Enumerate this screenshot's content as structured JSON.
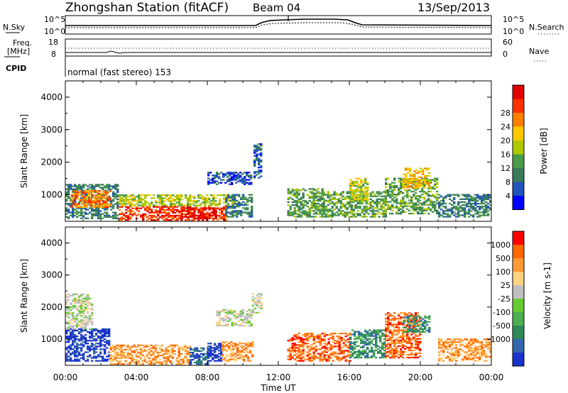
{
  "header": {
    "title": "Zhongshan Station (fitACF)",
    "beam": "Beam 04",
    "date": "13/Sep/2013"
  },
  "noise_panel": {
    "left_label": "N.Sky",
    "right_label": "N.Search",
    "ticks": [
      "10^5",
      "10^0"
    ]
  },
  "freq_panel": {
    "left_label": "Freq.",
    "left_unit": "[MHz]",
    "left_ticks": [
      "18",
      "8"
    ],
    "right_label": "Nave",
    "right_ticks": [
      "60",
      "0"
    ],
    "cpid_label": "CPID",
    "mode_text": "normal (fast stereo) 153"
  },
  "x_axis": {
    "label": "Time UT",
    "ticks": [
      "00:00",
      "04:00",
      "08:00",
      "12:00",
      "16:00",
      "20:00",
      "00:00"
    ]
  },
  "chart_data": [
    {
      "type": "heatmap",
      "panel": "power",
      "ylabel": "Slant Range [km]",
      "yticks": [
        "1000",
        "2000",
        "3000",
        "4000"
      ],
      "ylim": [
        180,
        4500
      ],
      "xlim": [
        0,
        24
      ],
      "colorbar_label": "Power [dB]",
      "colorbar_ticks": [
        "4",
        "8",
        "12",
        "16",
        "20",
        "24",
        "28"
      ],
      "colorbar_colors": [
        "#0000ff",
        "#2255bb",
        "#3a7a5a",
        "#4a9a4a",
        "#b0c800",
        "#ffc800",
        "#ff8000",
        "#ff3000",
        "#e00000"
      ],
      "regions": [
        {
          "t0": 0.0,
          "t1": 3.0,
          "r0": 250,
          "r1": 1300,
          "level": 2
        },
        {
          "t0": 0.3,
          "t1": 2.5,
          "r0": 600,
          "r1": 1100,
          "level": 6
        },
        {
          "t0": 3.0,
          "t1": 9.0,
          "r0": 200,
          "r1": 650,
          "level": 7
        },
        {
          "t0": 6.5,
          "t1": 8.5,
          "r0": 250,
          "r1": 600,
          "level": 8
        },
        {
          "t0": 3.0,
          "t1": 9.5,
          "r0": 650,
          "r1": 1000,
          "level": 4
        },
        {
          "t0": 9.0,
          "t1": 10.5,
          "r0": 300,
          "r1": 1000,
          "level": 2
        },
        {
          "t0": 10.6,
          "t1": 11.0,
          "r0": 1500,
          "r1": 2550,
          "level": 1
        },
        {
          "t0": 8.0,
          "t1": 10.5,
          "r0": 1300,
          "r1": 1700,
          "level": 1
        },
        {
          "t0": 12.5,
          "t1": 14.5,
          "r0": 300,
          "r1": 1200,
          "level": 3
        },
        {
          "t0": 14.5,
          "t1": 18.0,
          "r0": 300,
          "r1": 1100,
          "level": 3
        },
        {
          "t0": 16.0,
          "t1": 17.0,
          "r0": 800,
          "r1": 1500,
          "level": 4
        },
        {
          "t0": 18.0,
          "t1": 21.0,
          "r0": 400,
          "r1": 1500,
          "level": 3
        },
        {
          "t0": 19.0,
          "t1": 20.5,
          "r0": 1200,
          "r1": 1800,
          "level": 5
        },
        {
          "t0": 21.0,
          "t1": 24.0,
          "r0": 300,
          "r1": 1000,
          "level": 2
        }
      ]
    },
    {
      "type": "heatmap",
      "panel": "velocity",
      "ylabel": "Slant Range [km]",
      "yticks": [
        "1000",
        "2000",
        "3000",
        "4000"
      ],
      "ylim": [
        180,
        4500
      ],
      "xlim": [
        0,
        24
      ],
      "colorbar_label": "Velocity [m s-1]",
      "colorbar_ticks": [
        "1000",
        "500",
        "100",
        "25",
        "-25",
        "-100",
        "-500",
        "-1000"
      ],
      "colorbar_colors": [
        "#1a33cc",
        "#3366aa",
        "#2e8b57",
        "#4caf50",
        "#66cc33",
        "#c0c0c0",
        "#ffd27f",
        "#ff9933",
        "#ff6600",
        "#ff0000"
      ],
      "regions": [
        {
          "t0": 0.0,
          "t1": 2.5,
          "r0": 300,
          "r1": 1300,
          "level": 0
        },
        {
          "t0": 0.0,
          "t1": 1.5,
          "r0": 1300,
          "r1": 2400,
          "level": 5
        },
        {
          "t0": 2.5,
          "t1": 7.0,
          "r0": 200,
          "r1": 800,
          "level": 7
        },
        {
          "t0": 7.0,
          "t1": 8.0,
          "r0": 200,
          "r1": 700,
          "level": 1
        },
        {
          "t0": 8.0,
          "t1": 8.8,
          "r0": 300,
          "r1": 850,
          "level": 0
        },
        {
          "t0": 8.8,
          "t1": 10.5,
          "r0": 300,
          "r1": 900,
          "level": 7
        },
        {
          "t0": 10.5,
          "t1": 11.0,
          "r0": 1800,
          "r1": 2400,
          "level": 5
        },
        {
          "t0": 8.5,
          "t1": 10.5,
          "r0": 1400,
          "r1": 1900,
          "level": 5
        },
        {
          "t0": 12.5,
          "t1": 16.0,
          "r0": 300,
          "r1": 1200,
          "level": 8
        },
        {
          "t0": 16.0,
          "t1": 18.0,
          "r0": 400,
          "r1": 1300,
          "level": 2
        },
        {
          "t0": 18.0,
          "t1": 20.0,
          "r0": 400,
          "r1": 1800,
          "level": 8
        },
        {
          "t0": 19.0,
          "t1": 20.5,
          "r0": 1200,
          "r1": 1700,
          "level": 2
        },
        {
          "t0": 21.0,
          "t1": 24.0,
          "r0": 300,
          "r1": 1000,
          "level": 7
        }
      ]
    }
  ]
}
